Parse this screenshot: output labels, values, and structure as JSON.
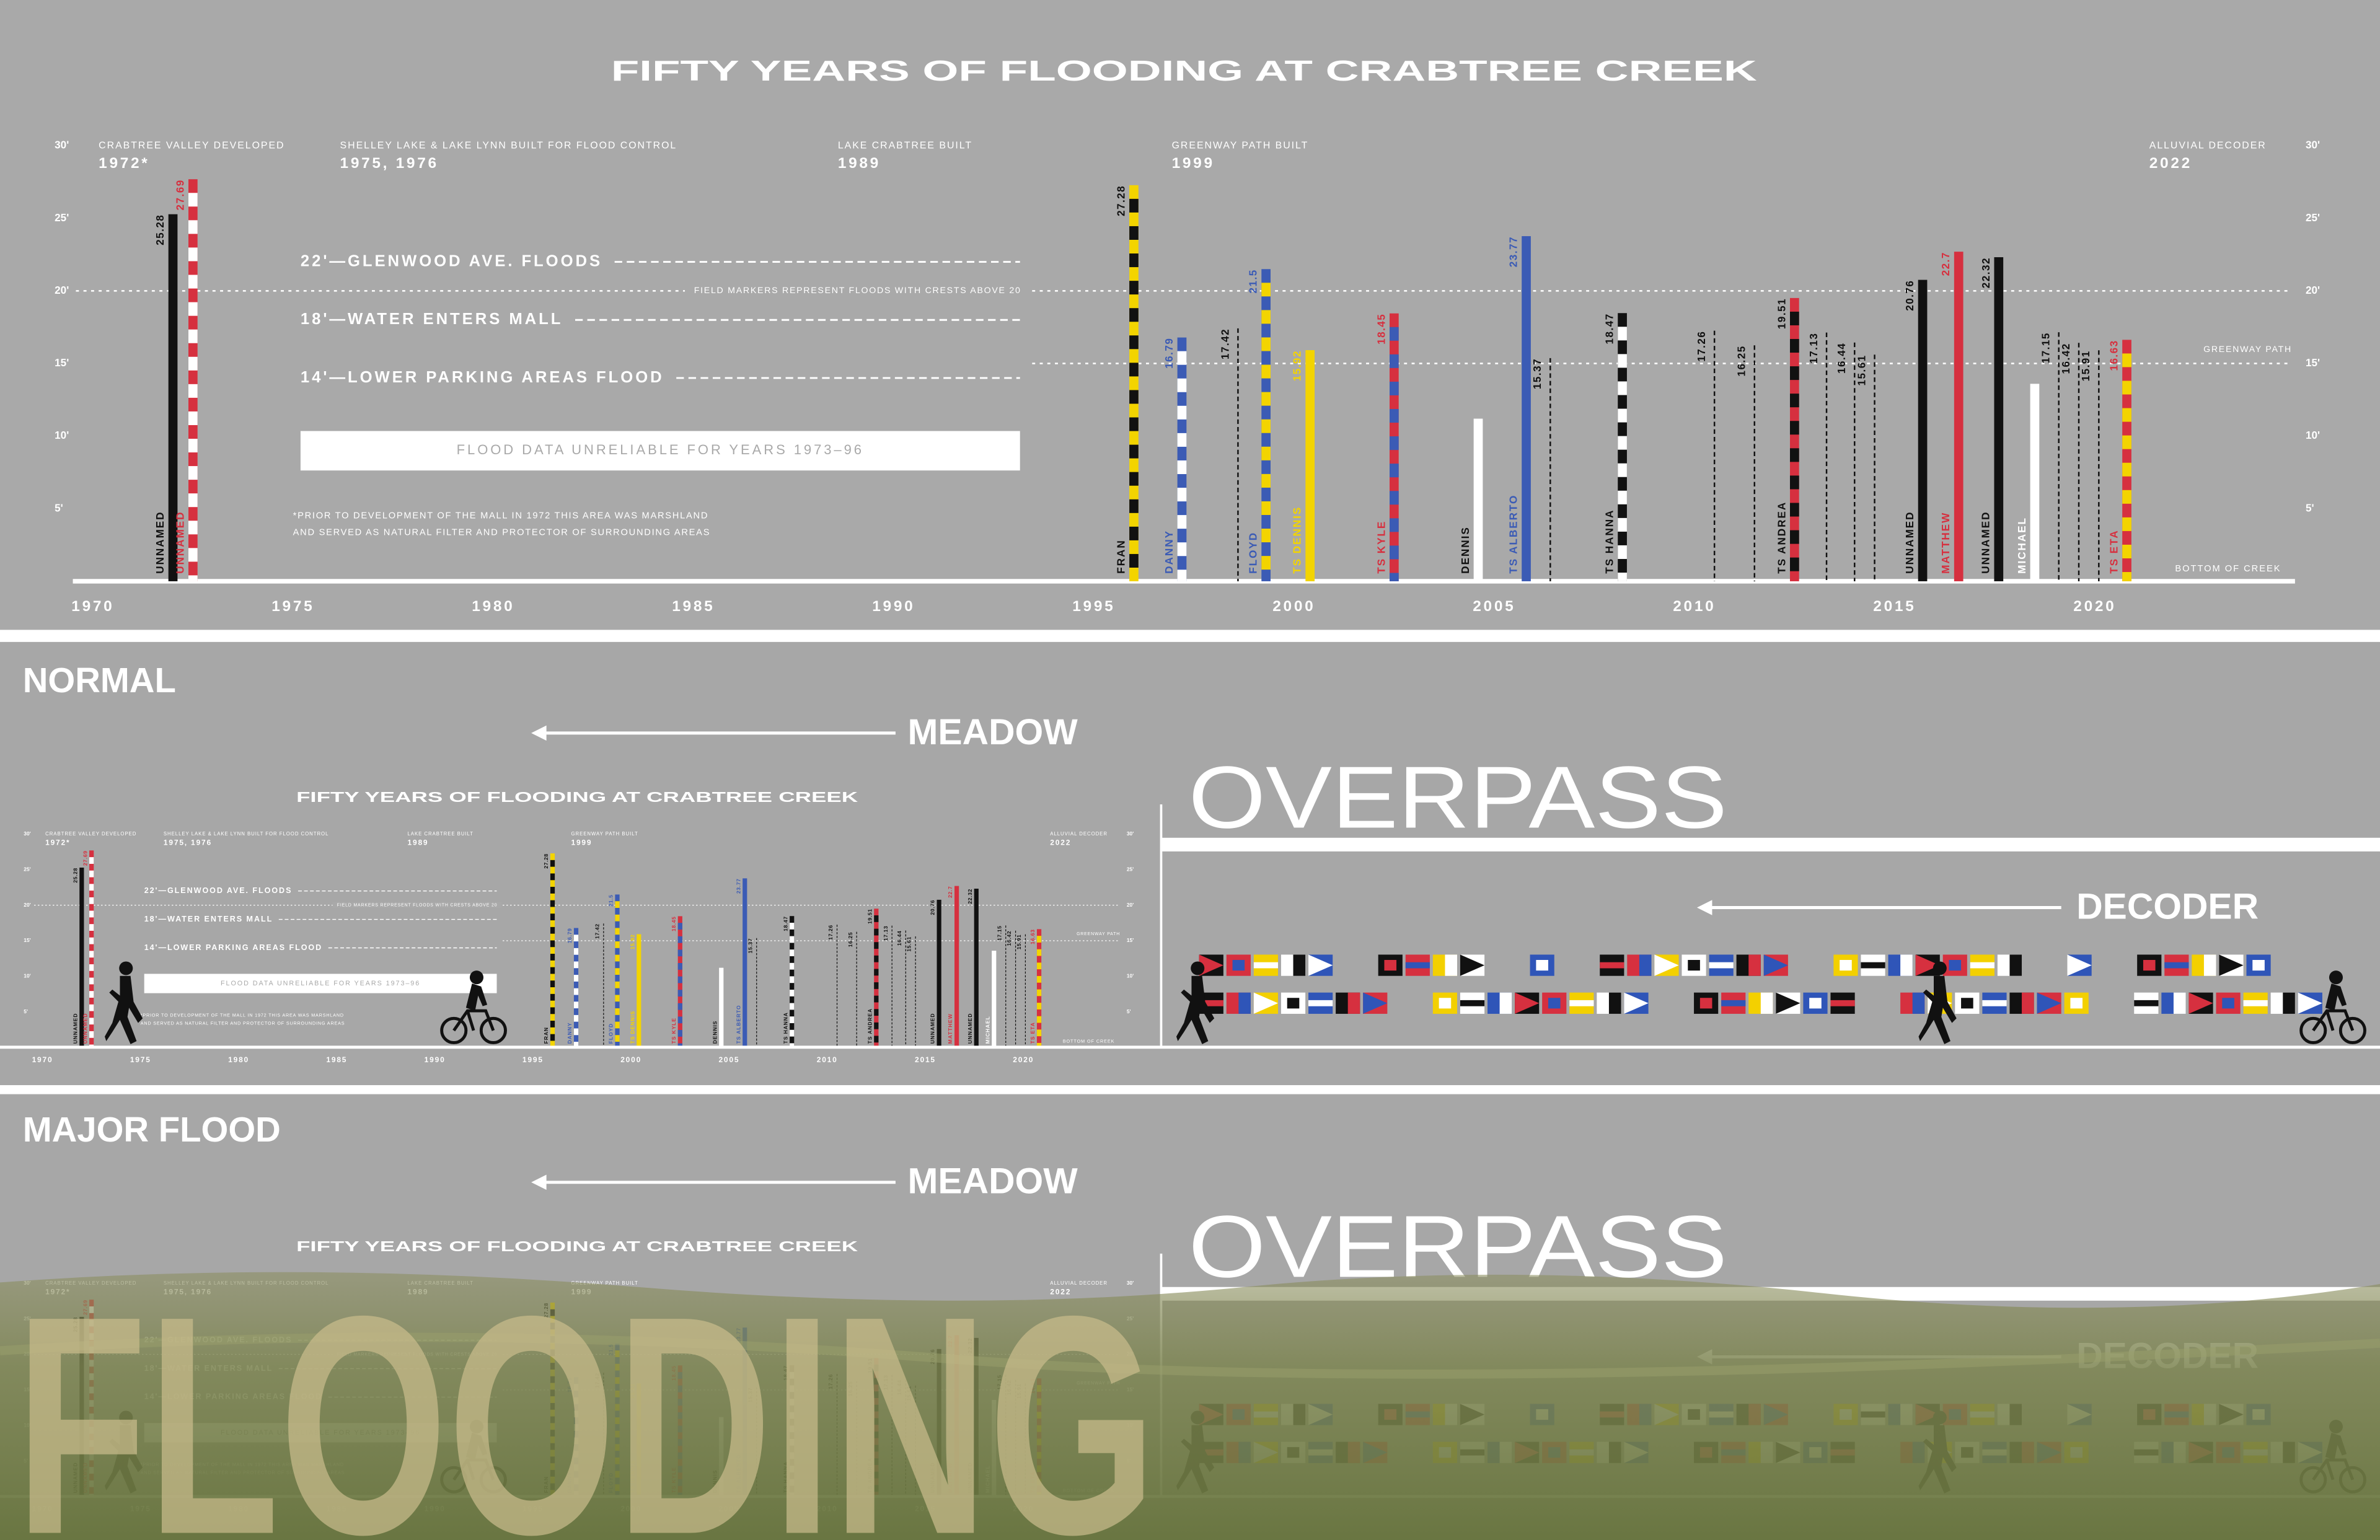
{
  "chart_data": {
    "type": "bar",
    "title": "FIFTY YEARS OF FLOODING AT CRABTREE CREEK",
    "xlim": [
      1969.5,
      2025
    ],
    "xticks": [
      1970,
      1975,
      1980,
      1985,
      1990,
      1995,
      2000,
      2005,
      2010,
      2015,
      2020
    ],
    "ylim": [
      0,
      30
    ],
    "yticks": [
      {
        "value": 5,
        "label": "5'"
      },
      {
        "value": 10,
        "label": "10'"
      },
      {
        "value": 15,
        "label": "15'"
      },
      {
        "value": 20,
        "label": "20'"
      },
      {
        "value": 25,
        "label": "25'"
      },
      {
        "value": 30,
        "label": "30'"
      }
    ],
    "x": [
      1972.0,
      1972.5,
      1996.0,
      1997.2,
      1998.6,
      1999.3,
      2000.4,
      2002.5,
      2004.6,
      2005.8,
      2006.4,
      2008.2,
      2010.5,
      2011.5,
      2012.5,
      2013.3,
      2014.0,
      2014.5,
      2015.7,
      2016.6,
      2017.6,
      2018.5,
      2019.1,
      2019.6,
      2020.1,
      2020.8
    ],
    "values": [
      25.28,
      27.69,
      27.28,
      16.79,
      17.42,
      21.5,
      15.92,
      18.45,
      11.2,
      23.77,
      15.37,
      18.47,
      17.26,
      16.25,
      19.51,
      17.13,
      16.44,
      15.61,
      20.76,
      22.7,
      22.32,
      13.6,
      17.15,
      16.42,
      15.91,
      16.63
    ],
    "value_printed": [
      true,
      true,
      true,
      true,
      true,
      true,
      true,
      true,
      false,
      true,
      true,
      true,
      true,
      true,
      true,
      true,
      true,
      true,
      true,
      true,
      true,
      false,
      true,
      true,
      true,
      true
    ],
    "names": [
      "UNNAMED",
      "UNNAMED",
      "FRAN",
      "DANNY",
      null,
      "FLOYD",
      "TS DENNIS",
      "TS KYLE",
      "DENNIS",
      "TS ALBERTO",
      null,
      "TS HANNA",
      null,
      null,
      "TS ANDREA",
      null,
      null,
      null,
      "UNNAMED",
      "MATTHEW",
      "UNNAMED",
      "MICHAEL",
      null,
      null,
      null,
      "TS ETA"
    ],
    "kinds": [
      "bar",
      "bar",
      "bar",
      "bar",
      "dashed",
      "bar",
      "bar",
      "bar",
      "bar",
      "bar",
      "dashed",
      "bar",
      "dashed",
      "dashed",
      "bar",
      "dashed",
      "dashed",
      "dashed",
      "bar",
      "bar",
      "bar",
      "bar",
      "dashed",
      "dashed",
      "dashed",
      "bar"
    ],
    "colors": [
      [
        "#111111"
      ],
      [
        "#d6303f",
        "#ffffff"
      ],
      [
        "#f3d400",
        "#111111"
      ],
      [
        "#3b5bb5",
        "#ffffff"
      ],
      [
        "#111111"
      ],
      [
        "#3b5bb5",
        "#f3d400"
      ],
      [
        "#f3d400"
      ],
      [
        "#d6303f",
        "#3b5bb5"
      ],
      [
        "#ffffff"
      ],
      [
        "#3b5bb5"
      ],
      [
        "#111111"
      ],
      [
        "#111111",
        "#ffffff"
      ],
      [
        "#111111"
      ],
      [
        "#111111"
      ],
      [
        "#d6303f",
        "#111111"
      ],
      [
        "#111111"
      ],
      [
        "#111111"
      ],
      [
        "#111111"
      ],
      [
        "#111111"
      ],
      [
        "#d6303f"
      ],
      [
        "#111111"
      ],
      [
        "#ffffff"
      ],
      [
        "#111111"
      ],
      [
        "#111111"
      ],
      [
        "#111111"
      ],
      [
        "#d6303f",
        "#f3d400"
      ]
    ],
    "label_colors": [
      "#111111",
      "#d6303f",
      "#111111",
      "#3b5bb5",
      "#111111",
      "#3b5bb5",
      "#f3d400",
      "#d6303f",
      "#111111",
      "#3b5bb5",
      "#111111",
      "#111111",
      "#111111",
      "#111111",
      "#111111",
      "#111111",
      "#111111",
      "#111111",
      "#111111",
      "#d6303f",
      "#111111",
      "#ffffff",
      "#111111",
      "#111111",
      "#111111",
      "#d6303f"
    ],
    "events": [
      {
        "label": "CRABTREE VALLEY DEVELOPED",
        "year": "1972*"
      },
      {
        "label": "SHELLEY LAKE & LAKE LYNN BUILT FOR FLOOD CONTROL",
        "year": "1975, 1976"
      },
      {
        "label": "LAKE CRABTREE BUILT",
        "year": "1989"
      },
      {
        "label": "GREENWAY PATH BUILT",
        "year": "1999"
      },
      {
        "label": "ALLUVIAL DECODER",
        "year": "2022"
      }
    ],
    "thresholds": [
      {
        "value": 22,
        "label": "22'—GLENWOOD AVE. FLOODS"
      },
      {
        "value": 18,
        "label": "18'—WATER ENTERS MALL"
      },
      {
        "value": 14,
        "label": "14'—LOWER PARKING AREAS FLOOD"
      }
    ],
    "reference_lines": [
      {
        "value": 20,
        "label": "FIELD MARKERS REPRESENT FLOODS WITH CRESTS ABOVE 20"
      },
      {
        "value": 15,
        "label": "GREENWAY PATH"
      }
    ],
    "note_box": "FLOOD DATA UNRELIABLE FOR YEARS 1973–96",
    "footnote": [
      "*PRIOR TO DEVELOPMENT OF THE MALL IN 1972 THIS AREA WAS MARSHLAND",
      "AND SERVED AS NATURAL FILTER AND PROTECTOR OF SURROUNDING AREAS"
    ],
    "bottom_label": "BOTTOM OF CREEK"
  },
  "sections": [
    {
      "label": "NORMAL"
    },
    {
      "label": "MAJOR FLOOD",
      "overlay": "FLOODING"
    }
  ],
  "zones": {
    "meadow": "MEADOW",
    "overpass": "OVERPASS",
    "decoder": "DECODER"
  }
}
